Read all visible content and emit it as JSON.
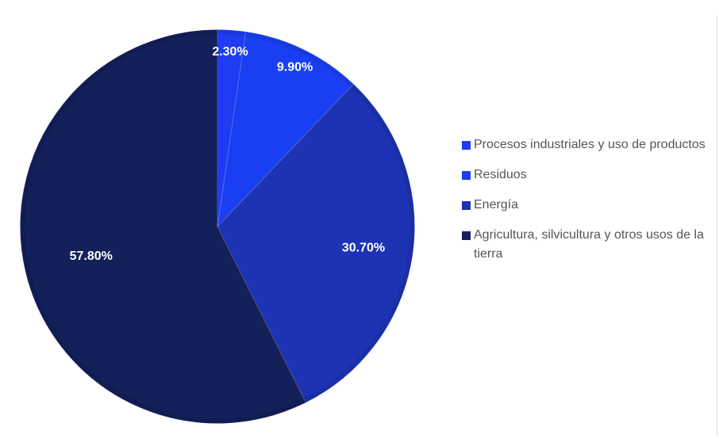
{
  "chart_data": {
    "type": "pie",
    "title": "",
    "slices": [
      {
        "label": "Procesos industriales y uso de productos",
        "value": 2.3,
        "display": "2.30%",
        "color": "#1f3cf2"
      },
      {
        "label": "Residuos",
        "value": 9.9,
        "display": "9.90%",
        "color": "#1a3ff2"
      },
      {
        "label": "Energía",
        "value": 30.7,
        "display": "30.70%",
        "color": "#1d33b3"
      },
      {
        "label": "Agricultura, silvicultura y otros usos de la tierra",
        "value": 57.8,
        "display": "57.80%",
        "color": "#13205a"
      }
    ],
    "legend_position": "right",
    "start_angle": "top (12 o'clock)",
    "direction": "clockwise"
  },
  "colors": {
    "background": "#ffffff",
    "legend_text": "#555555",
    "slice_label_text": "#ffffff"
  }
}
